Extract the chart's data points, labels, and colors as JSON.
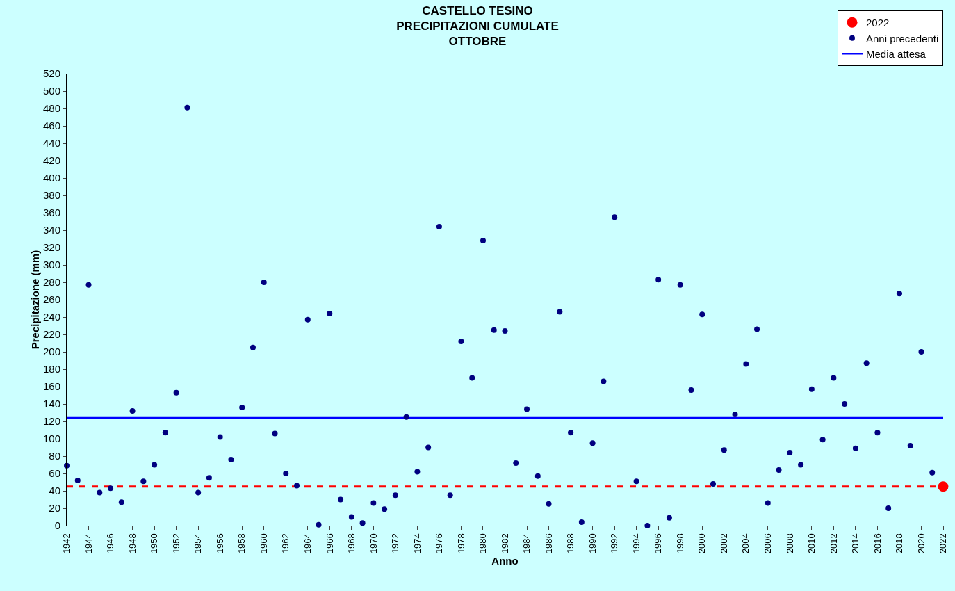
{
  "chart_data": {
    "type": "scatter",
    "title": "CASTELLO TESINO\nPRECIPITAZIONI CUMULATE\nOTTOBRE",
    "xlabel": "Anno",
    "ylabel": "Precipitazione (mm)",
    "series": [
      {
        "name": "2022",
        "color": "#ff0000",
        "marker": "circle",
        "x": [
          2022
        ],
        "values": [
          45
        ]
      },
      {
        "name": "Anni precedenti",
        "color": "#000080",
        "marker": "circle",
        "x": [
          1942,
          1943,
          1944,
          1945,
          1946,
          1947,
          1948,
          1949,
          1950,
          1951,
          1952,
          1953,
          1954,
          1955,
          1956,
          1957,
          1958,
          1959,
          1960,
          1961,
          1962,
          1963,
          1964,
          1965,
          1966,
          1967,
          1968,
          1969,
          1970,
          1971,
          1972,
          1973,
          1974,
          1975,
          1976,
          1977,
          1978,
          1979,
          1980,
          1981,
          1982,
          1983,
          1984,
          1985,
          1986,
          1987,
          1988,
          1989,
          1990,
          1991,
          1992,
          1994,
          1995,
          1996,
          1997,
          1998,
          1999,
          2000,
          2001,
          2002,
          2003,
          2004,
          2005,
          2006,
          2007,
          2008,
          2009,
          2010,
          2011,
          2012,
          2013,
          2014,
          2015,
          2016,
          2017,
          2018,
          2019,
          2020,
          2021
        ],
        "values": [
          69,
          52,
          277,
          38,
          43,
          27,
          132,
          51,
          70,
          107,
          153,
          481,
          38,
          55,
          102,
          76,
          136,
          205,
          280,
          106,
          60,
          46,
          237,
          1,
          244,
          30,
          10,
          3,
          26,
          19,
          35,
          125,
          62,
          90,
          344,
          35,
          212,
          170,
          328,
          225,
          224,
          72,
          134,
          57,
          25,
          246,
          107,
          4,
          95,
          166,
          355,
          51,
          0,
          283,
          9,
          277,
          156,
          243,
          48,
          87,
          128,
          186,
          226,
          26,
          64,
          84,
          70,
          157,
          99,
          170,
          140,
          89,
          187,
          107,
          20,
          267,
          92,
          200,
          61
        ]
      }
    ],
    "ref_lines": [
      {
        "axis": "y",
        "value": 45,
        "label": null,
        "color": "#ff0000",
        "line_style": "dashed"
      },
      {
        "axis": "y",
        "value": 124,
        "label": "Media attesa",
        "color": "#0000ff",
        "line_style": "solid"
      }
    ],
    "xlim": [
      1942,
      2022
    ],
    "xticks": [
      1942,
      1944,
      1946,
      1948,
      1950,
      1952,
      1954,
      1956,
      1958,
      1960,
      1962,
      1964,
      1966,
      1968,
      1970,
      1972,
      1974,
      1976,
      1978,
      1980,
      1982,
      1984,
      1986,
      1988,
      1990,
      1992,
      1994,
      1996,
      1998,
      2000,
      2002,
      2004,
      2006,
      2008,
      2010,
      2012,
      2014,
      2016,
      2018,
      2020,
      2022
    ],
    "ylim": [
      0,
      520
    ],
    "yticks": [
      0,
      20,
      40,
      60,
      80,
      100,
      120,
      140,
      160,
      180,
      200,
      220,
      240,
      260,
      280,
      300,
      320,
      340,
      360,
      380,
      400,
      420,
      440,
      460,
      480,
      500,
      520
    ],
    "grid": false,
    "legend": "top right"
  }
}
